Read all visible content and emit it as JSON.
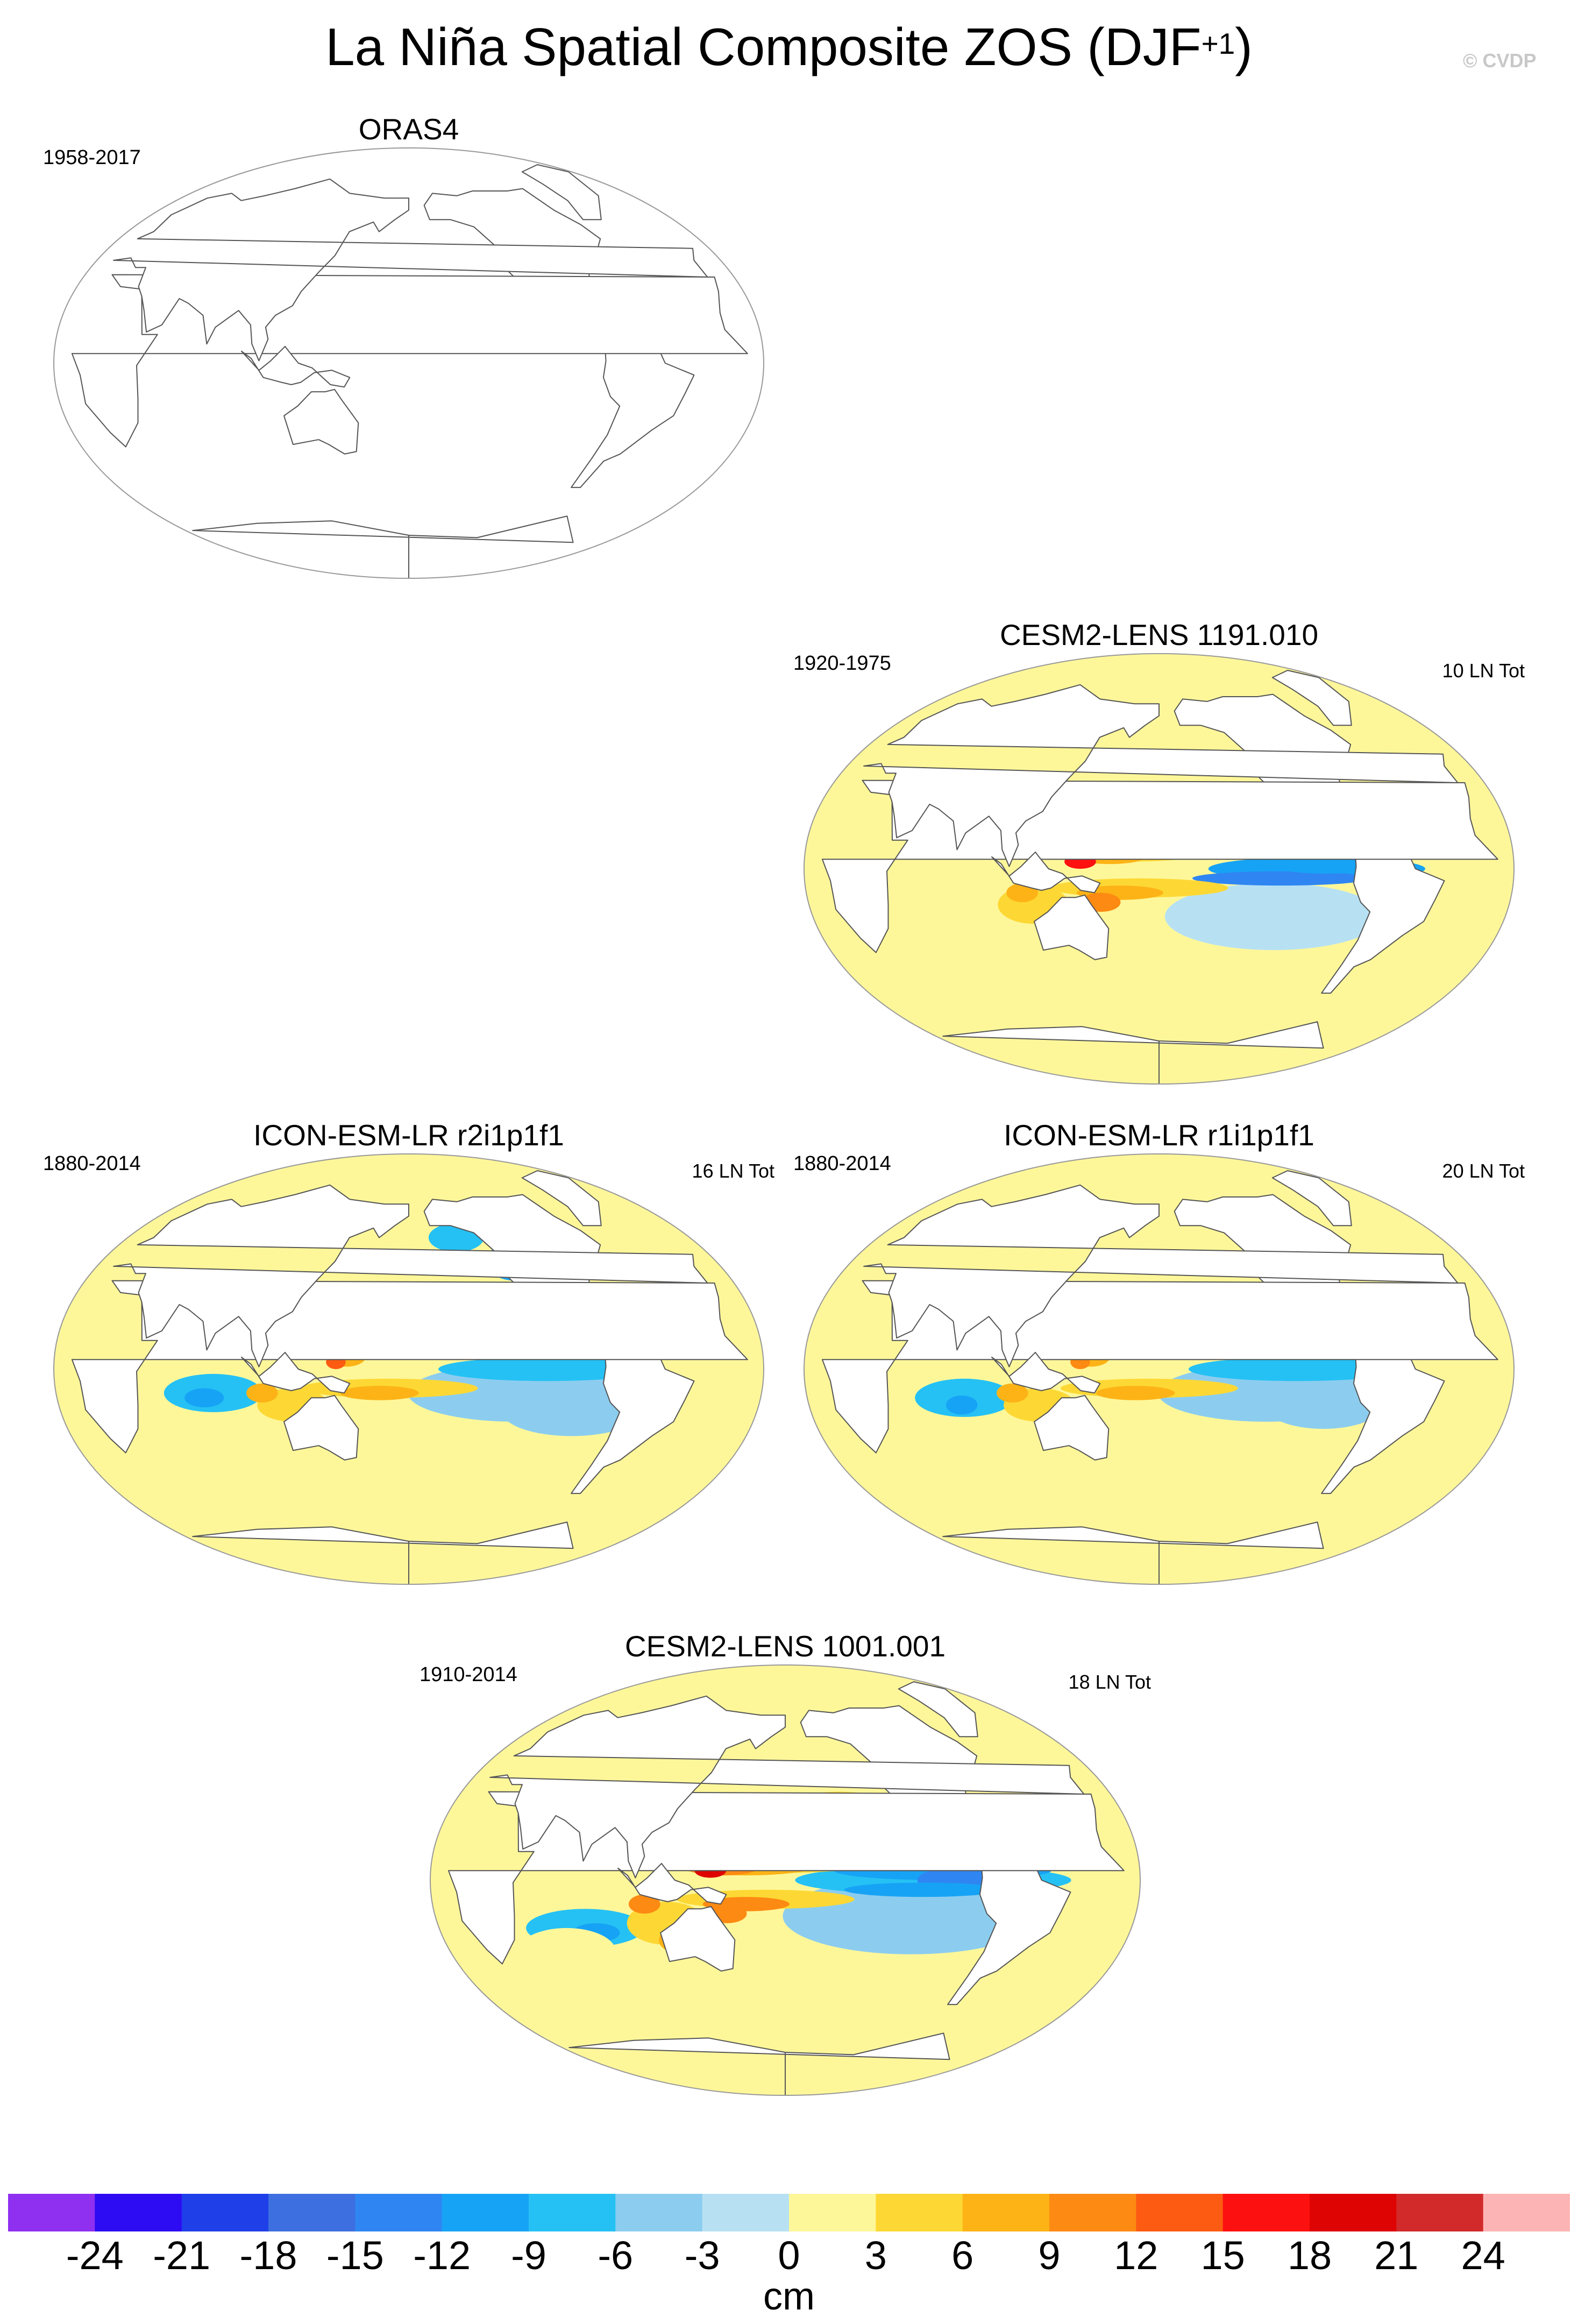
{
  "figure": {
    "title": "La Niña Spatial Composite ZOS (DJF",
    "title_superscript": "+1",
    "title_close": ")",
    "credit": "© CVDP"
  },
  "panels": [
    {
      "id": "oras4",
      "title": "ORAS4",
      "years": "1958-2017",
      "count": "",
      "has_data": false
    },
    {
      "id": "cesm2-1191",
      "title": "CESM2-LENS 1191.010",
      "years": "1920-1975",
      "count": "10 LN Tot",
      "has_data": true
    },
    {
      "id": "icon-r2",
      "title": "ICON-ESM-LR r2i1p1f1",
      "years": "1880-2014",
      "count": "16 LN Tot",
      "has_data": true
    },
    {
      "id": "icon-r1",
      "title": "ICON-ESM-LR r1i1p1f1",
      "years": "1880-2014",
      "count": "20 LN Tot",
      "has_data": true
    },
    {
      "id": "cesm2-1001",
      "title": "CESM2-LENS 1001.001",
      "years": "1910-2014",
      "count": "18 LN Tot",
      "has_data": true
    }
  ],
  "colorbar": {
    "label": "cm",
    "ticks": [
      "-24",
      "-21",
      "-18",
      "-15",
      "-12",
      "-9",
      "-6",
      "-3",
      "0",
      "3",
      "6",
      "9",
      "12",
      "15",
      "18",
      "21",
      "24"
    ],
    "colors": [
      "#8f2ff0",
      "#2d0bf3",
      "#1f3fe8",
      "#3d6fe0",
      "#2f86f2",
      "#17a3f5",
      "#25c1f4",
      "#8ccdef",
      "#b7e1f3",
      "#fef79a",
      "#fdd835",
      "#fdb316",
      "#fd8a12",
      "#fd5b12",
      "#fd1010",
      "#de0404",
      "#d22a2a",
      "#fdb4b4"
    ]
  }
}
